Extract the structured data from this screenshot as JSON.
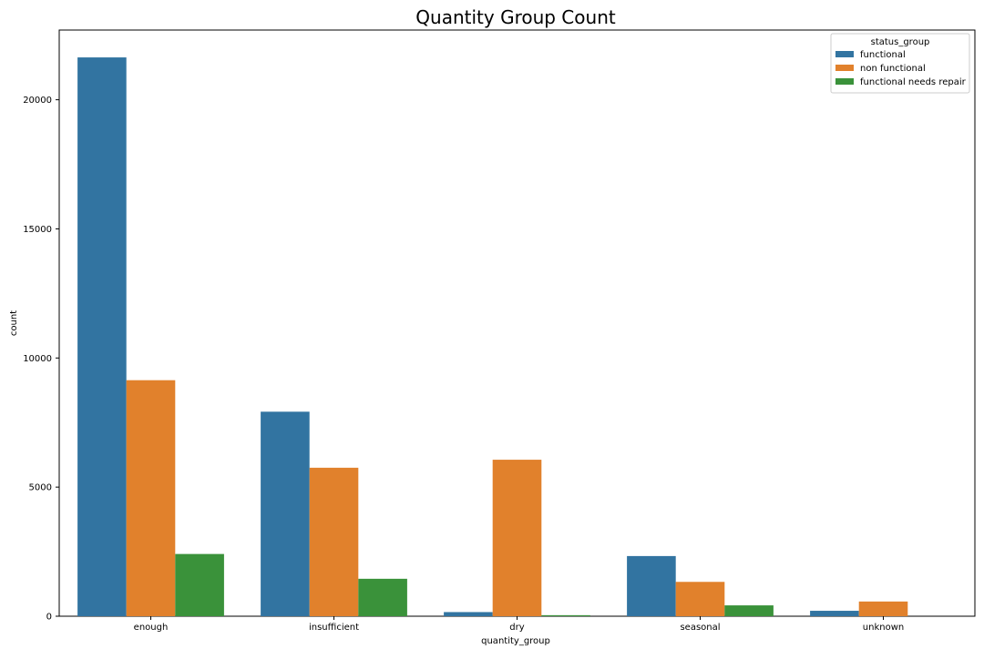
{
  "chart_data": {
    "type": "bar",
    "title": "Quantity Group Count",
    "xlabel": "quantity_group",
    "ylabel": "count",
    "categories": [
      "enough",
      "insufficient",
      "dry",
      "seasonal",
      "unknown"
    ],
    "series": [
      {
        "name": "functional",
        "color": "#3274a1",
        "values": [
          21640,
          7920,
          160,
          2330,
          210
        ]
      },
      {
        "name": "non functional",
        "color": "#e1812c",
        "values": [
          9140,
          5750,
          6060,
          1330,
          570
        ]
      },
      {
        "name": "functional needs repair",
        "color": "#3a923a",
        "values": [
          2410,
          1450,
          40,
          420,
          0
        ]
      }
    ],
    "ylim": [
      0,
      22700
    ],
    "yticks": [
      0,
      5000,
      10000,
      15000,
      20000
    ],
    "ytick_labels": [
      "0",
      "5000",
      "10000",
      "15000",
      "20000"
    ],
    "grid": false,
    "legend": {
      "title": "status_group",
      "placement": "top-right"
    }
  }
}
